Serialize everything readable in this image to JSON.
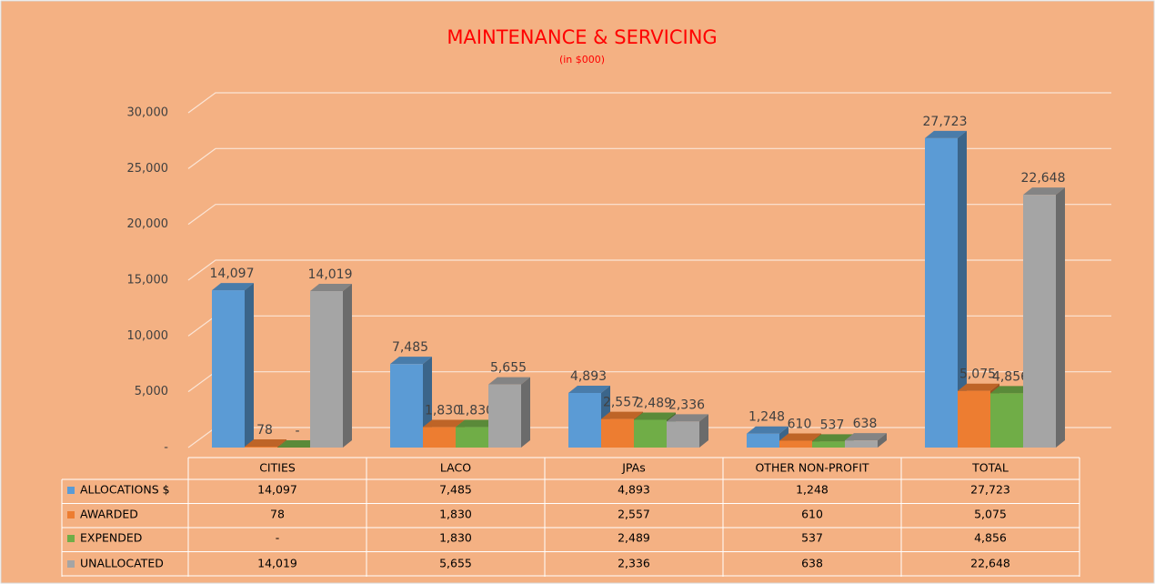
{
  "chart_data": {
    "type": "bar3d",
    "title": "MAINTENANCE & SERVICING",
    "subtitle": "(in $000)",
    "categories": [
      "CITIES",
      "LACO",
      "JPAs",
      "OTHER NON-PROFIT",
      "TOTAL"
    ],
    "series": [
      {
        "name": "ALLOCATIONS $",
        "color": "#5b9bd5",
        "values": [
          14097,
          7485,
          4893,
          1248,
          27723
        ],
        "value_labels": [
          "14,097",
          "7,485",
          "4,893",
          "1,248",
          "27,723"
        ]
      },
      {
        "name": "AWARDED",
        "color": "#ed7d31",
        "values": [
          78,
          1830,
          2557,
          610,
          5075
        ],
        "value_labels": [
          "78",
          "1,830",
          "2,557",
          "610",
          "5,075"
        ]
      },
      {
        "name": "EXPENDED",
        "color": "#70ad47",
        "values": [
          0,
          1830,
          2489,
          537,
          4856
        ],
        "value_labels": [
          "-",
          "1,830",
          "2,489",
          "537",
          "4,856"
        ]
      },
      {
        "name": "UNALLOCATED",
        "color": "#a5a5a5",
        "values": [
          14019,
          5655,
          2336,
          638,
          22648
        ],
        "value_labels": [
          "14,019",
          "5,655",
          "2,336",
          "638",
          "22,648"
        ]
      }
    ],
    "ylim": [
      0,
      30000
    ],
    "yticks": [
      {
        "value": 0,
        "label": "-"
      },
      {
        "value": 5000,
        "label": "5,000"
      },
      {
        "value": 10000,
        "label": "10,000"
      },
      {
        "value": 15000,
        "label": "15,000"
      },
      {
        "value": 20000,
        "label": "20,000"
      },
      {
        "value": 25000,
        "label": "25,000"
      },
      {
        "value": 30000,
        "label": "30,000"
      }
    ],
    "grid": true,
    "data_table": true
  }
}
